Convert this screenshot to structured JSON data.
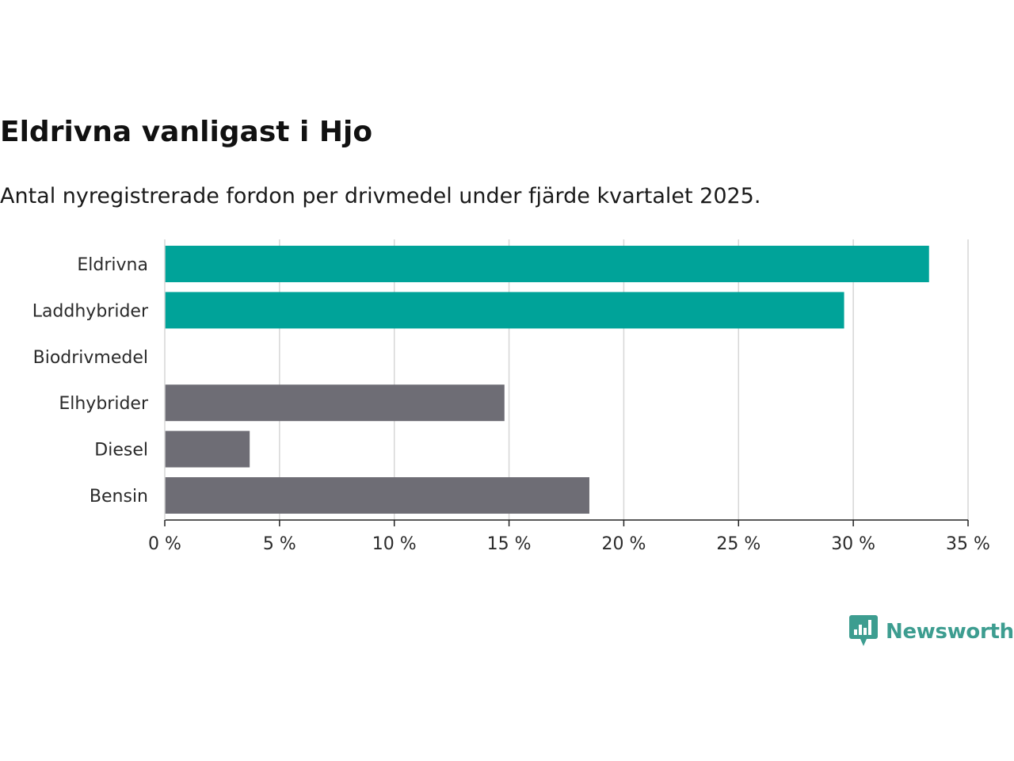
{
  "chart_data": {
    "type": "bar",
    "orientation": "horizontal",
    "title": "Eldrivna vanligast i Hjo",
    "subtitle": "Antal nyregistrerade fordon per drivmedel under fjärde kvartalet 2025.",
    "categories": [
      "Eldrivna",
      "Laddhybrider",
      "Biodrivmedel",
      "Elhybrider",
      "Diesel",
      "Bensin"
    ],
    "values": [
      33.3,
      29.6,
      0,
      14.8,
      3.7,
      18.5
    ],
    "bar_colors": [
      "#00a399",
      "#00a399",
      "#6e6d75",
      "#6e6d75",
      "#6e6d75",
      "#6e6d75"
    ],
    "xlim": [
      0,
      35
    ],
    "xticks": [
      0,
      5,
      10,
      15,
      20,
      25,
      30,
      35
    ],
    "xtick_labels": [
      "0 %",
      "5 %",
      "10 %",
      "15 %",
      "20 %",
      "25 %",
      "30 %",
      "35 %"
    ],
    "xlabel": "",
    "ylabel": "",
    "grid": true
  },
  "brand": {
    "name": "Newsworthy",
    "color": "#3d9d90"
  }
}
